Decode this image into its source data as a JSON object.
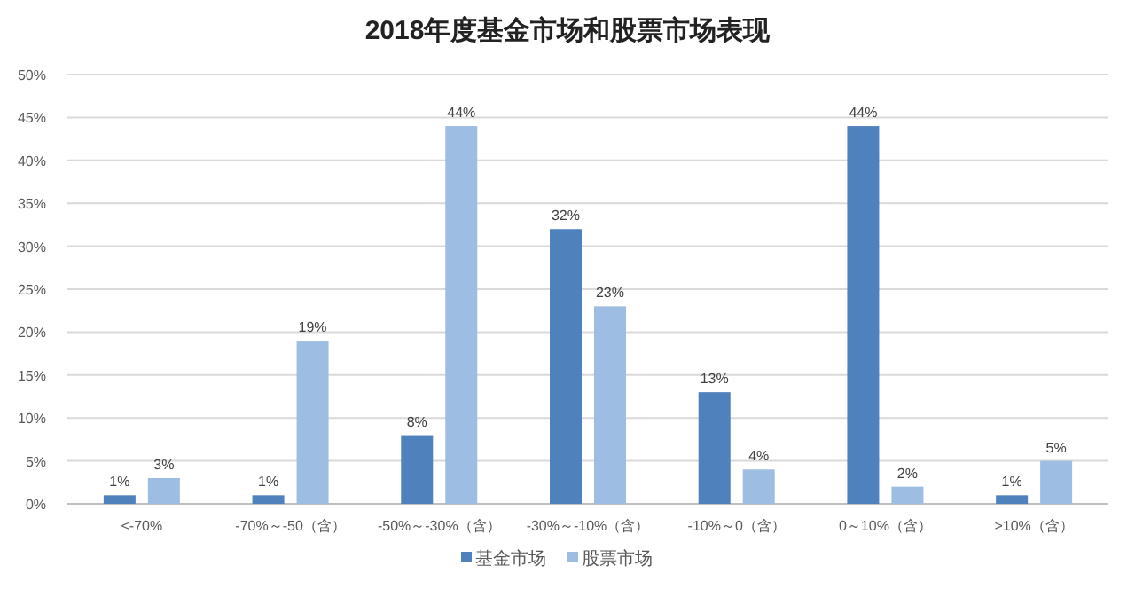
{
  "chart_data": {
    "type": "bar",
    "title": "2018年度基金市场和股票市场表现",
    "categories": [
      "<-70%",
      "-70%～-50（含）",
      "-50%～-30%（含）",
      "-30%～-10%（含）",
      "-10%～0（含）",
      "0～10%（含）",
      ">10%（含）"
    ],
    "series": [
      {
        "name": "基金市场",
        "color": "#4f81bd",
        "values": [
          1,
          1,
          8,
          32,
          13,
          44,
          1
        ],
        "value_labels": [
          "1%",
          "1%",
          "8%",
          "32%",
          "13%",
          "44%",
          "1%"
        ]
      },
      {
        "name": "股票市场",
        "color": "#9dbde3",
        "values": [
          3,
          19,
          44,
          23,
          4,
          2,
          5
        ],
        "value_labels": [
          "3%",
          "19%",
          "44%",
          "23%",
          "4%",
          "2%",
          "5%"
        ]
      }
    ],
    "ylim": [
      0,
      50
    ],
    "yticks": [
      {
        "value": 0,
        "label": "0%"
      },
      {
        "value": 5,
        "label": "5%"
      },
      {
        "value": 10,
        "label": "10%"
      },
      {
        "value": 15,
        "label": "15%"
      },
      {
        "value": 20,
        "label": "20%"
      },
      {
        "value": 25,
        "label": "25%"
      },
      {
        "value": 30,
        "label": "30%"
      },
      {
        "value": 35,
        "label": "35%"
      },
      {
        "value": 40,
        "label": "40%"
      },
      {
        "value": 45,
        "label": "45%"
      },
      {
        "value": 50,
        "label": "50%"
      }
    ],
    "grid": "y",
    "legend": "bottom"
  }
}
